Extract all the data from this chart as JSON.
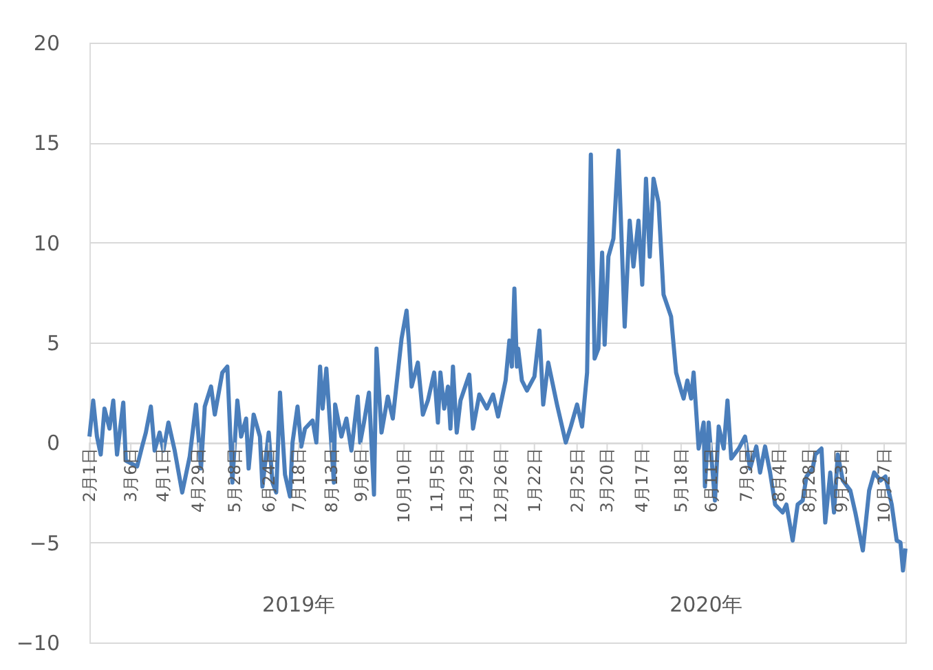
{
  "chart_data": {
    "type": "line",
    "x": [
      "2019-02-01",
      "2019-02-04",
      "2019-02-07",
      "2019-02-10",
      "2019-02-13",
      "2019-02-17",
      "2019-02-20",
      "2019-02-23",
      "2019-02-28",
      "2019-03-02",
      "2019-03-08",
      "2019-03-11",
      "2019-03-15",
      "2019-03-18",
      "2019-03-22",
      "2019-03-25",
      "2019-03-29",
      "2019-04-01",
      "2019-04-05",
      "2019-04-10",
      "2019-04-16",
      "2019-04-22",
      "2019-04-27",
      "2019-05-01",
      "2019-05-04",
      "2019-05-09",
      "2019-05-12",
      "2019-05-18",
      "2019-05-22",
      "2019-05-26",
      "2019-05-30",
      "2019-06-02",
      "2019-06-06",
      "2019-06-08",
      "2019-06-12",
      "2019-06-17",
      "2019-06-19",
      "2019-06-24",
      "2019-06-27",
      "2019-06-30",
      "2019-07-03",
      "2019-07-07",
      "2019-07-11",
      "2019-07-13",
      "2019-07-17",
      "2019-07-20",
      "2019-07-23",
      "2019-07-29",
      "2019-08-01",
      "2019-08-04",
      "2019-08-06",
      "2019-08-09",
      "2019-08-15",
      "2019-08-16",
      "2019-08-21",
      "2019-08-25",
      "2019-08-29",
      "2019-09-03",
      "2019-09-05",
      "2019-09-08",
      "2019-09-12",
      "2019-09-16",
      "2019-09-18",
      "2019-09-22",
      "2019-09-27",
      "2019-10-01",
      "2019-10-08",
      "2019-10-12",
      "2019-10-14",
      "2019-10-16",
      "2019-10-21",
      "2019-10-25",
      "2019-10-29",
      "2019-11-03",
      "2019-11-06",
      "2019-11-08",
      "2019-11-11",
      "2019-11-14",
      "2019-11-16",
      "2019-11-18",
      "2019-11-21",
      "2019-11-24",
      "2019-12-01",
      "2019-12-04",
      "2019-12-09",
      "2019-12-15",
      "2019-12-20",
      "2019-12-24",
      "2019-12-30",
      "2020-01-02",
      "2020-01-04",
      "2020-01-06",
      "2020-01-08",
      "2020-01-09",
      "2020-01-12",
      "2020-01-16",
      "2020-01-22",
      "2020-01-26",
      "2020-01-29",
      "2020-02-02",
      "2020-02-09",
      "2020-02-16",
      "2020-02-20",
      "2020-02-25",
      "2020-02-29",
      "2020-03-04",
      "2020-03-07",
      "2020-03-10",
      "2020-03-13",
      "2020-03-16",
      "2020-03-18",
      "2020-03-21",
      "2020-03-25",
      "2020-03-29",
      "2020-04-03",
      "2020-04-07",
      "2020-04-10",
      "2020-04-14",
      "2020-04-17",
      "2020-04-20",
      "2020-04-23",
      "2020-04-26",
      "2020-04-30",
      "2020-05-04",
      "2020-05-10",
      "2020-05-14",
      "2020-05-18",
      "2020-05-20",
      "2020-05-23",
      "2020-05-26",
      "2020-05-28",
      "2020-06-01",
      "2020-06-05",
      "2020-06-06",
      "2020-06-09",
      "2020-06-11",
      "2020-06-14",
      "2020-06-17",
      "2020-06-21",
      "2020-06-24",
      "2020-06-27",
      "2020-07-03",
      "2020-07-08",
      "2020-07-12",
      "2020-07-17",
      "2020-07-20",
      "2020-07-24",
      "2020-07-28",
      "2020-08-01",
      "2020-08-07",
      "2020-08-10",
      "2020-08-15",
      "2020-08-19",
      "2020-08-23",
      "2020-08-26",
      "2020-08-31",
      "2020-09-02",
      "2020-09-07",
      "2020-09-10",
      "2020-09-14",
      "2020-09-17",
      "2020-09-20",
      "2020-09-24",
      "2020-09-30",
      "2020-10-04",
      "2020-10-10",
      "2020-10-15",
      "2020-10-19",
      "2020-10-24",
      "2020-10-28",
      "2020-11-02",
      "2020-11-06",
      "2020-11-09",
      "2020-11-11",
      "2020-11-13"
    ],
    "series": [
      {
        "color": "#4a7ebb",
        "values": [
          0.3,
          2.1,
          0.3,
          -0.6,
          1.7,
          0.7,
          2.1,
          -0.6,
          2.0,
          -0.9,
          -1.1,
          -1.2,
          -0.2,
          0.5,
          1.8,
          -0.4,
          0.5,
          -0.4,
          1.0,
          -0.4,
          -2.5,
          -0.7,
          1.9,
          -1.3,
          1.8,
          2.8,
          1.4,
          3.5,
          3.8,
          -2.0,
          2.1,
          0.3,
          1.2,
          -1.3,
          1.4,
          0.3,
          -2.2,
          0.5,
          -2.0,
          -2.5,
          2.5,
          -1.6,
          -2.7,
          0,
          1.8,
          -0.2,
          0.7,
          1.1,
          0,
          3.8,
          1.7,
          3.7,
          -2.0,
          1.9,
          0.3,
          1.2,
          -0.4,
          2.3,
          0,
          1.0,
          2.5,
          -2.6,
          4.7,
          0.5,
          2.3,
          1.2,
          5.2,
          6.6,
          4.9,
          2.8,
          4.0,
          1.4,
          2.1,
          3.5,
          1.0,
          3.5,
          1.7,
          2.8,
          0.7,
          3.8,
          0.5,
          2.1,
          3.4,
          0.7,
          2.4,
          1.7,
          2.4,
          1.3,
          3.1,
          5.1,
          3.8,
          7.7,
          3.8,
          4.7,
          3.1,
          2.6,
          3.3,
          5.6,
          1.9,
          4.0,
          1.9,
          0,
          0.8,
          1.9,
          0.8,
          3.5,
          14.4,
          4.2,
          4.7,
          9.5,
          4.9,
          9.3,
          10.2,
          14.6,
          5.8,
          11.1,
          8.8,
          11.1,
          7.9,
          13.2,
          9.3,
          13.2,
          12.0,
          7.4,
          6.3,
          3.5,
          2.6,
          2.2,
          3.1,
          2.2,
          3.5,
          -0.3,
          1.0,
          -2.2,
          1.0,
          -0.6,
          -2.9,
          0.8,
          -0.3,
          2.1,
          -0.8,
          -0.3,
          0.3,
          -1.3,
          -0.2,
          -1.5,
          -0.2,
          -1.5,
          -3.1,
          -3.5,
          -3.1,
          -4.9,
          -3.1,
          -2.9,
          -1.7,
          -1.3,
          -0.6,
          -0.3,
          -4.0,
          -1.5,
          -3.5,
          -0.6,
          -1.9,
          -2.4,
          -3.5,
          -5.4,
          -2.4,
          -1.5,
          -1.9,
          -1.7,
          -3.1,
          -4.9,
          -5.0,
          -6.4,
          -5.3
        ]
      }
    ],
    "xlim": [
      "2019-02-01",
      "2020-11-13"
    ],
    "xticks": [
      {
        "value": "2019-02-01",
        "label": "2月1日"
      },
      {
        "value": "2019-03-06",
        "label": "3月6日"
      },
      {
        "value": "2019-04-01",
        "label": "4月1日"
      },
      {
        "value": "2019-04-29",
        "label": "4月29日"
      },
      {
        "value": "2019-05-28",
        "label": "5月28日"
      },
      {
        "value": "2019-06-24",
        "label": "6月24日"
      },
      {
        "value": "2019-07-18",
        "label": "7月18日"
      },
      {
        "value": "2019-08-13",
        "label": "8月13日"
      },
      {
        "value": "2019-09-06",
        "label": "9月6日"
      },
      {
        "value": "2019-10-10",
        "label": "10月10日"
      },
      {
        "value": "2019-11-05",
        "label": "11月5日"
      },
      {
        "value": "2019-11-29",
        "label": "11月29日"
      },
      {
        "value": "2019-12-26",
        "label": "12月26日"
      },
      {
        "value": "2020-01-22",
        "label": "1月22日"
      },
      {
        "value": "2020-02-25",
        "label": "2月25日"
      },
      {
        "value": "2020-03-20",
        "label": "3月20日"
      },
      {
        "value": "2020-04-17",
        "label": "4月17日"
      },
      {
        "value": "2020-05-18",
        "label": "5月18日"
      },
      {
        "value": "2020-06-11",
        "label": "6月11日"
      },
      {
        "value": "2020-07-09",
        "label": "7月9日"
      },
      {
        "value": "2020-08-04",
        "label": "8月4日"
      },
      {
        "value": "2020-08-28",
        "label": "8月28日"
      },
      {
        "value": "2020-09-23",
        "label": "9月23日"
      },
      {
        "value": "2020-10-27",
        "label": "10月27日"
      }
    ],
    "ylim": [
      -10,
      20
    ],
    "yticks": [
      -10,
      -5,
      0,
      5,
      10,
      15,
      20
    ],
    "grid": "y",
    "annotations": [
      "2019年",
      "2020年"
    ]
  }
}
